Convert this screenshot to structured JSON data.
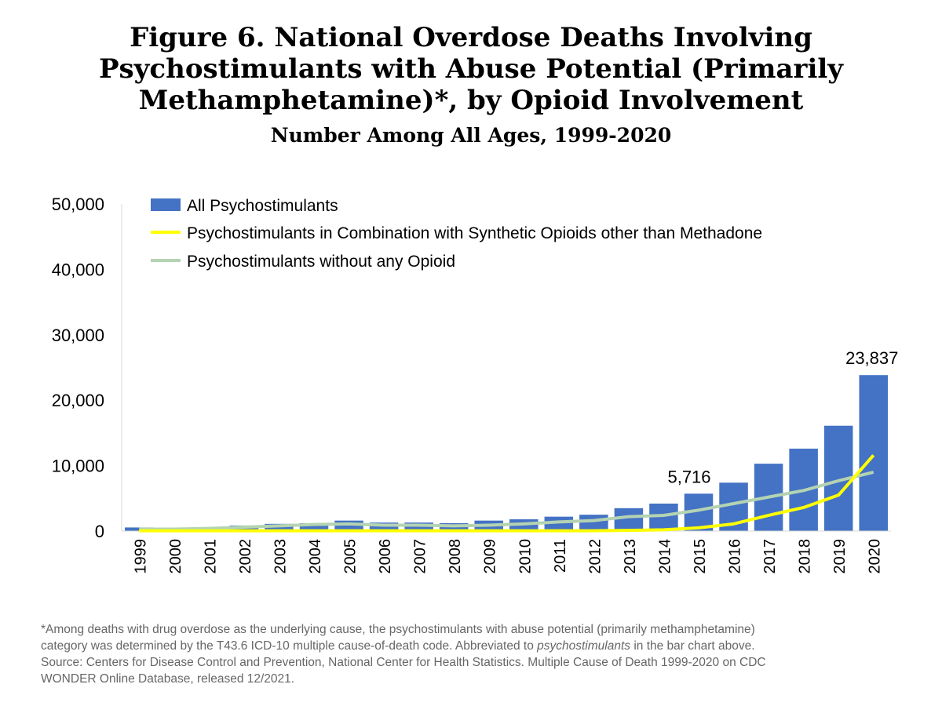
{
  "chart_data": {
    "type": "bar",
    "title": "Figure 6. National Overdose Deaths Involving Psychostimulants with Abuse Potential (Primarily Methamphetamine)*, by Opioid Involvement",
    "subtitle": "Number Among All Ages, 1999-2020",
    "categories": [
      "1999",
      "2000",
      "2001",
      "2002",
      "2003",
      "2004",
      "2005",
      "2006",
      "2007",
      "2008",
      "2009",
      "2010",
      "2011",
      "2012",
      "2013",
      "2014",
      "2015",
      "2016",
      "2017",
      "2018",
      "2019",
      "2020"
    ],
    "ylim": [
      0,
      50000
    ],
    "yticks": [
      "0",
      "10,000",
      "20,000",
      "30,000",
      "40,000",
      "50,000"
    ],
    "grid": false,
    "legend": "top-left",
    "series": [
      {
        "name": "All Psychostimulants",
        "type": "bar",
        "color": "#4472C4",
        "values": [
          550,
          450,
          550,
          850,
          1100,
          1200,
          1600,
          1300,
          1300,
          1200,
          1600,
          1800,
          2200,
          2500,
          3500,
          4200,
          5716,
          7400,
          10300,
          12600,
          16100,
          23837
        ]
      },
      {
        "name": "Psychostimulants in Combination with Synthetic Opioids other than Methadone",
        "type": "line",
        "color": "#FFFF00",
        "values": [
          50,
          50,
          50,
          50,
          50,
          50,
          50,
          50,
          50,
          50,
          50,
          50,
          50,
          50,
          100,
          200,
          500,
          1100,
          2400,
          3600,
          5500,
          11600
        ]
      },
      {
        "name": "Psychostimulants without any Opioid",
        "type": "line",
        "color": "#B4D3B2",
        "values": [
          300,
          300,
          400,
          600,
          800,
          1000,
          1100,
          900,
          900,
          800,
          900,
          1100,
          1400,
          1600,
          2200,
          2400,
          3200,
          4200,
          5200,
          6200,
          7700,
          9000
        ]
      }
    ],
    "data_labels": [
      {
        "category": "2015",
        "text": "5,716"
      },
      {
        "category": "2020",
        "text": "23,837"
      }
    ]
  },
  "footnote": [
    "*Among deaths with drug overdose as the underlying cause, the psychostimulants with abuse potential (primarily methamphetamine)",
    "category was determined by the T43.6 ICD-10 multiple cause-of-death code. Abbreviated to ",
    "psychostimulants",
    " in the bar chart above.",
    "Source: Centers for Disease Control and Prevention, National Center for Health Statistics. Multiple Cause of Death 1999-2020 on CDC",
    "WONDER Online Database, released 12/2021."
  ]
}
